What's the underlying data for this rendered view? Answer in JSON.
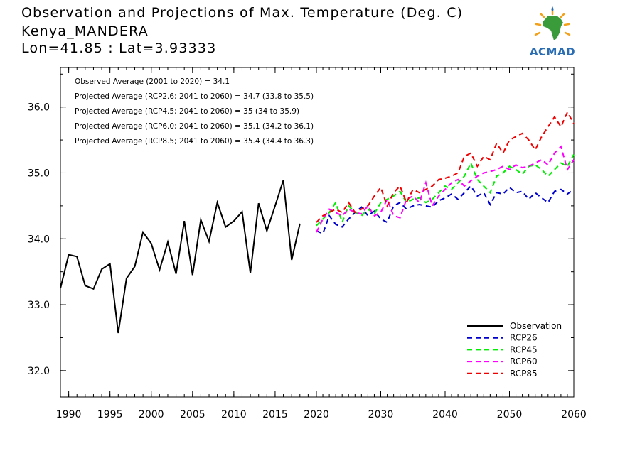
{
  "header": {
    "line1": "Observation and Projections of Max. Temperature (Deg. C)",
    "line2": "Kenya_MANDERA",
    "line3": "Lon=41.85 : Lat=3.93333"
  },
  "logo": {
    "text": "ACMAD",
    "icon": "africa-map-sun-logo"
  },
  "chart_data": {
    "type": "line",
    "title": "Observation and Projections of Max. Temperature (Deg. C)",
    "xlim": [
      1989,
      2060
    ],
    "ylim": [
      31.6,
      36.6
    ],
    "grid": false,
    "x_ticks": [
      1990,
      1995,
      2000,
      2005,
      2010,
      2015,
      2020,
      2030,
      2040,
      2050,
      2060
    ],
    "y_ticks": [
      32.0,
      33.0,
      34.0,
      35.0,
      36.0
    ],
    "annotations": [
      "Observed Average (2001 to 2020) = 34.1",
      "Projected Average (RCP2.6; 2041 to 2060) = 34.7 (33.8 to 35.5)",
      "Projected Average (RCP4.5; 2041 to 2060) = 35 (34 to 35.9)",
      "Projected Average (RCP6.0; 2041 to 2060) = 35.1 (34.2 to 36.1)",
      "Projected Average (RCP8.5; 2041 to 2060) = 35.4 (34.4 to 36.3)"
    ],
    "legend_position": "bottom-right",
    "series": [
      {
        "name": "Observation",
        "color": "#000000",
        "dash": "solid",
        "x": [
          1989,
          1990,
          1991,
          1992,
          1993,
          1994,
          1995,
          1996,
          1997,
          1998,
          1999,
          2000,
          2001,
          2002,
          2003,
          2004,
          2005,
          2006,
          2007,
          2008,
          2009,
          2010,
          2011,
          2012,
          2013,
          2014,
          2015,
          2016,
          2017,
          2018,
          2019
        ],
        "y": [
          33.25,
          33.76,
          33.73,
          33.29,
          33.24,
          33.54,
          33.62,
          32.57,
          33.4,
          33.58,
          34.1,
          33.93,
          33.53,
          33.95,
          33.47,
          34.27,
          33.45,
          34.29,
          33.96,
          34.55,
          34.18,
          34.27,
          34.41,
          33.48,
          34.54,
          34.12,
          34.5,
          34.89,
          33.68,
          34.23,
          null
        ]
      },
      {
        "name": "RCP26",
        "color": "#0000cc",
        "dash": "dashed",
        "x": [
          2020,
          2021,
          2022,
          2023,
          2024,
          2025,
          2026,
          2027,
          2028,
          2029,
          2030,
          2031,
          2032,
          2033,
          2034,
          2035,
          2036,
          2037,
          2038,
          2039,
          2040,
          2041,
          2042,
          2043,
          2044,
          2045,
          2046,
          2047,
          2048,
          2049,
          2050,
          2051,
          2052,
          2053,
          2054,
          2055,
          2056,
          2057,
          2058,
          2059,
          2060
        ],
        "y": [
          34.12,
          34.08,
          34.35,
          34.22,
          34.18,
          34.3,
          34.4,
          34.48,
          34.35,
          34.42,
          34.3,
          34.25,
          34.5,
          34.55,
          34.45,
          34.5,
          34.52,
          34.5,
          34.48,
          34.58,
          34.62,
          34.68,
          34.6,
          34.7,
          34.8,
          34.65,
          34.7,
          34.52,
          34.7,
          34.68,
          34.78,
          34.7,
          34.72,
          34.6,
          34.7,
          34.62,
          34.55,
          34.72,
          34.75,
          34.68,
          34.75
        ]
      },
      {
        "name": "RCP45",
        "color": "#00ee00",
        "dash": "dashed",
        "x": [
          2020,
          2021,
          2022,
          2023,
          2024,
          2025,
          2026,
          2027,
          2028,
          2029,
          2030,
          2031,
          2032,
          2033,
          2034,
          2035,
          2036,
          2037,
          2038,
          2039,
          2040,
          2041,
          2042,
          2043,
          2044,
          2045,
          2046,
          2047,
          2048,
          2049,
          2050,
          2051,
          2052,
          2053,
          2054,
          2055,
          2056,
          2057,
          2058,
          2059,
          2060
        ],
        "y": [
          34.2,
          34.3,
          34.4,
          34.55,
          34.25,
          34.5,
          34.4,
          34.35,
          34.45,
          34.38,
          34.55,
          34.6,
          34.65,
          34.72,
          34.55,
          34.6,
          34.62,
          34.55,
          34.6,
          34.7,
          34.8,
          34.75,
          34.85,
          34.95,
          35.15,
          34.9,
          34.8,
          34.7,
          34.95,
          35.0,
          35.1,
          35.05,
          34.98,
          35.1,
          35.12,
          35.05,
          34.95,
          35.05,
          35.15,
          35.1,
          35.28
        ]
      },
      {
        "name": "RCP60",
        "color": "#ff00ff",
        "dash": "dashed",
        "x": [
          2020,
          2021,
          2022,
          2023,
          2024,
          2025,
          2026,
          2027,
          2028,
          2029,
          2030,
          2031,
          2032,
          2033,
          2034,
          2035,
          2036,
          2037,
          2038,
          2039,
          2040,
          2041,
          2042,
          2043,
          2044,
          2045,
          2046,
          2047,
          2048,
          2049,
          2050,
          2051,
          2052,
          2053,
          2054,
          2055,
          2056,
          2057,
          2058,
          2059,
          2060
        ],
        "y": [
          34.1,
          34.3,
          34.45,
          34.4,
          34.35,
          34.45,
          34.4,
          34.38,
          34.5,
          34.35,
          34.4,
          34.6,
          34.35,
          34.32,
          34.6,
          34.65,
          34.55,
          34.85,
          34.5,
          34.65,
          34.75,
          34.85,
          34.9,
          34.8,
          34.88,
          34.95,
          35.0,
          35.02,
          35.05,
          35.1,
          35.05,
          35.12,
          35.08,
          35.1,
          35.15,
          35.2,
          35.12,
          35.3,
          35.4,
          35.05,
          35.2
        ]
      },
      {
        "name": "RCP85",
        "color": "#ee0000",
        "dash": "dashed",
        "x": [
          2020,
          2021,
          2022,
          2023,
          2024,
          2025,
          2026,
          2027,
          2028,
          2029,
          2030,
          2031,
          2032,
          2033,
          2034,
          2035,
          2036,
          2037,
          2038,
          2039,
          2040,
          2041,
          2042,
          2043,
          2044,
          2045,
          2046,
          2047,
          2048,
          2049,
          2050,
          2051,
          2052,
          2053,
          2054,
          2055,
          2056,
          2057,
          2058,
          2059,
          2060
        ],
        "y": [
          34.25,
          34.35,
          34.4,
          34.45,
          34.4,
          34.55,
          34.4,
          34.45,
          34.5,
          34.65,
          34.78,
          34.5,
          34.7,
          34.8,
          34.55,
          34.75,
          34.7,
          34.75,
          34.8,
          34.9,
          34.92,
          34.95,
          35.0,
          35.25,
          35.3,
          35.1,
          35.25,
          35.2,
          35.45,
          35.3,
          35.5,
          35.55,
          35.6,
          35.5,
          35.35,
          35.55,
          35.7,
          35.85,
          35.7,
          35.92,
          35.75
        ]
      }
    ]
  }
}
